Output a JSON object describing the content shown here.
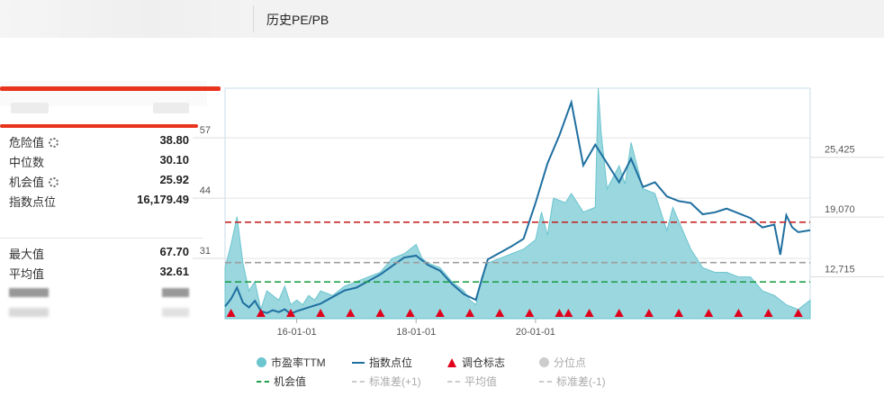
{
  "header": {
    "title": "历史PE/PB"
  },
  "stats_top": [
    {
      "label": "危险值",
      "value": "38.80",
      "has_settings": true
    },
    {
      "label": "中位数",
      "value": "30.10",
      "has_settings": false
    },
    {
      "label": "机会值",
      "value": "25.92",
      "has_settings": true
    },
    {
      "label": "指数点位",
      "value": "16,179.49",
      "has_settings": false
    }
  ],
  "stats_bottom": [
    {
      "label": "最大值",
      "value": "67.70"
    },
    {
      "label": "平均值",
      "value": "32.61"
    }
  ],
  "legend": {
    "pe": "市盈率TTM",
    "index": "指数点位",
    "signal": "调仓标志",
    "percentile": "分位点",
    "opportunity": "机会值",
    "std_plus": "标准差(+1)",
    "mean": "平均值",
    "std_minus": "标准差(-1)"
  },
  "colors": {
    "pe_fill": "#8fd3db",
    "pe_line": "#6cc5cf",
    "index_line": "#1f6fa0",
    "danger": "#c62828",
    "opportunity": "#22a04b",
    "median": "#9e9e9e",
    "signal": "#e0001b"
  },
  "chart_data": {
    "type": "area",
    "x_ticks": [
      "16-01-01",
      "18-01-01",
      "20-01-01"
    ],
    "y_left_ticks": [
      "57",
      "44",
      "31"
    ],
    "y_right_ticks": [
      "25,425",
      "19,070",
      "12,715"
    ],
    "y_left_lim": [
      18,
      67.7
    ],
    "y_right_lim": [
      7500,
      32000
    ],
    "x_lim": [
      2014.8,
      2024.6
    ],
    "reference_lines": {
      "danger": 38.8,
      "median": 30.1,
      "opportunity": 25.92
    },
    "series": [
      {
        "name": "市盈率TTM",
        "axis": "left",
        "x": [
          2014.8,
          2014.9,
          2015.0,
          2015.1,
          2015.2,
          2015.3,
          2015.4,
          2015.5,
          2015.6,
          2015.7,
          2015.8,
          2015.9,
          2016.0,
          2016.1,
          2016.2,
          2016.3,
          2016.4,
          2016.6,
          2016.8,
          2017.0,
          2017.2,
          2017.4,
          2017.6,
          2017.8,
          2018.0,
          2018.1,
          2018.2,
          2018.4,
          2018.6,
          2018.8,
          2018.9,
          2019.0,
          2019.1,
          2019.2,
          2019.4,
          2019.6,
          2019.8,
          2020.0,
          2020.1,
          2020.2,
          2020.3,
          2020.5,
          2020.6,
          2020.8,
          2021.0,
          2021.05,
          2021.1,
          2021.2,
          2021.4,
          2021.5,
          2021.6,
          2021.8,
          2022.0,
          2022.2,
          2022.3,
          2022.5,
          2022.6,
          2022.8,
          2023.0,
          2023.2,
          2023.4,
          2023.6,
          2023.8,
          2024.0,
          2024.2,
          2024.4,
          2024.6
        ],
        "y": [
          29,
          34,
          40,
          30,
          24,
          26,
          20,
          24,
          23,
          22,
          25,
          21,
          22,
          21,
          23,
          22,
          24,
          23,
          25,
          26,
          27,
          28,
          31,
          32,
          34,
          31,
          30,
          29,
          26,
          24,
          22,
          21,
          27,
          30,
          31,
          32,
          33,
          35,
          41,
          36,
          44,
          43,
          45,
          41,
          42,
          67.7,
          58,
          46,
          51,
          47,
          56,
          46,
          45,
          37,
          42,
          36,
          33,
          29,
          28,
          28,
          27,
          27,
          24,
          23,
          21,
          20,
          22
        ]
      },
      {
        "name": "指数点位",
        "axis": "right",
        "x": [
          2014.8,
          2014.9,
          2015.0,
          2015.1,
          2015.2,
          2015.3,
          2015.4,
          2015.5,
          2015.6,
          2015.7,
          2015.8,
          2015.9,
          2016.0,
          2016.1,
          2016.2,
          2016.4,
          2016.6,
          2016.8,
          2017.0,
          2017.2,
          2017.4,
          2017.6,
          2017.8,
          2018.0,
          2018.2,
          2018.4,
          2018.6,
          2018.8,
          2019.0,
          2019.1,
          2019.2,
          2019.4,
          2019.6,
          2019.8,
          2020.0,
          2020.2,
          2020.4,
          2020.6,
          2020.8,
          2021.0,
          2021.2,
          2021.4,
          2021.6,
          2021.8,
          2022.0,
          2022.2,
          2022.4,
          2022.6,
          2022.8,
          2023.0,
          2023.2,
          2023.4,
          2023.6,
          2023.8,
          2024.0,
          2024.1,
          2024.2,
          2024.3,
          2024.4,
          2024.6
        ],
        "y": [
          8800,
          9600,
          10800,
          9200,
          8700,
          9400,
          8300,
          8100,
          8400,
          8200,
          8500,
          8000,
          8300,
          8500,
          8700,
          9100,
          9800,
          10500,
          10800,
          11500,
          12200,
          13100,
          14000,
          14200,
          13200,
          12600,
          11200,
          10100,
          9500,
          11700,
          13800,
          14500,
          15200,
          16000,
          19800,
          24000,
          27000,
          30500,
          23800,
          26000,
          24000,
          22000,
          24500,
          21500,
          22000,
          20500,
          20000,
          19800,
          18600,
          18800,
          19200,
          18700,
          18200,
          17200,
          17500,
          14300,
          18500,
          17200,
          16700,
          16900
        ]
      }
    ],
    "signals_x": [
      2014.9,
      2015.4,
      2015.9,
      2016.4,
      2016.9,
      2017.4,
      2017.9,
      2018.4,
      2018.9,
      2019.4,
      2019.9,
      2020.4,
      2020.55,
      2020.9,
      2021.4,
      2021.9,
      2022.4,
      2022.9,
      2023.4,
      2023.9,
      2024.4
    ]
  }
}
